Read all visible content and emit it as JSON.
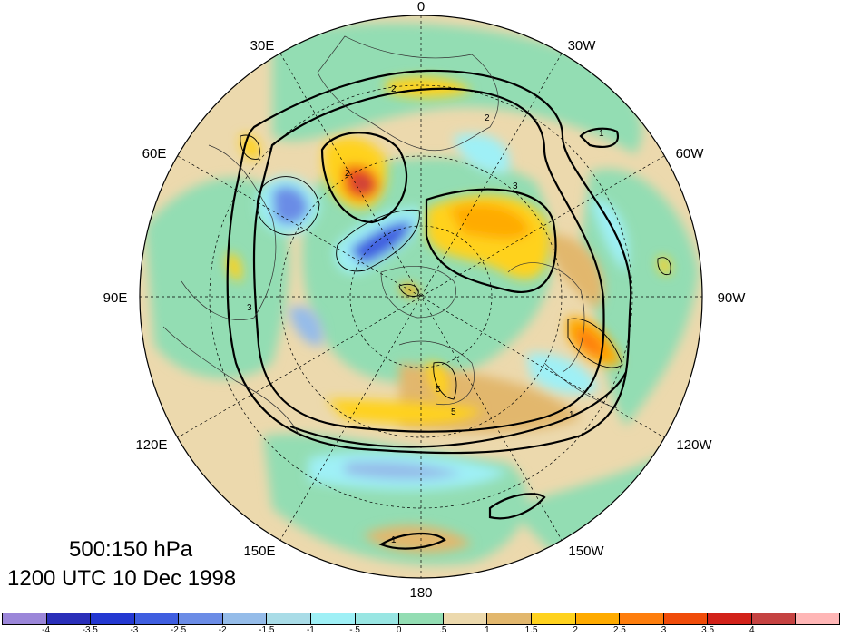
{
  "map": {
    "projection": "north-polar-stereographic",
    "longitude_labels": [
      "0",
      "30W",
      "60W",
      "90W",
      "120W",
      "150W",
      "180",
      "150E",
      "120E",
      "90E",
      "60E",
      "30E"
    ],
    "latitude_circles_dashed": true,
    "coastlines": true
  },
  "title": {
    "levels": "500:150 hPa",
    "time": "1200 UTC 10 Dec 1998"
  },
  "contour_labels": [
    "2",
    "2",
    "3",
    "3",
    "5",
    "5",
    "2",
    "1",
    "1",
    "1"
  ],
  "colorbar": {
    "colors": [
      "#9b86d9",
      "#2a2fb9",
      "#2438d1",
      "#3f5ee0",
      "#6b8ce6",
      "#95bce9",
      "#a9dce7",
      "#9ff0f6",
      "#99e6e3",
      "#93ddb3",
      "#ecd9ad",
      "#e2b76d",
      "#ffd21e",
      "#ffab00",
      "#fe7e0d",
      "#f04c0a",
      "#d2221a",
      "#c54241",
      "#ffb6b6"
    ],
    "labels": [
      "-4",
      "-3.5",
      "-3",
      "-2.5",
      "-2",
      "-1.5",
      "-1",
      "-.5",
      "0",
      ".5",
      "1",
      "1.5",
      "2",
      "2.5",
      "3",
      "3.5",
      "4"
    ]
  }
}
